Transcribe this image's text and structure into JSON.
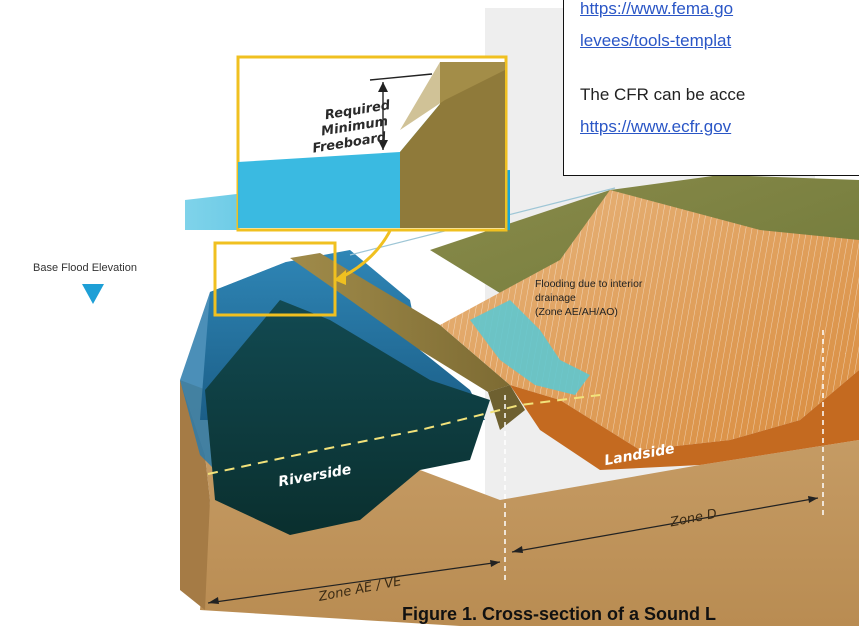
{
  "labels": {
    "base_flood_elevation": "Base Flood Elevation",
    "freeboard": [
      "Required",
      "Minimum",
      "Freeboard"
    ],
    "flooding": [
      "Flooding due to interior",
      "drainage",
      "(Zone AE/AH/AO)"
    ],
    "riverside": "Riverside",
    "landside": "Landside",
    "zone_ae_ve": "Zone AE / VE",
    "zone_d": "Zone D"
  },
  "caption": "Figure 1. Cross-section of a Sound L",
  "note": {
    "link1": "https://www.fema.go",
    "link2": "levees/tools-templat",
    "text": "The CFR can be acce",
    "link3": "https://www.ecfr.gov"
  },
  "colors": {
    "water": "#1f6f9f",
    "deep_water": "#0d3b3a",
    "levee": "#8c7a3a",
    "soil": "#c79a5e",
    "landside_hatch": "#e39a52",
    "callout_border": "#f0c020",
    "link": "#2a56c6"
  }
}
